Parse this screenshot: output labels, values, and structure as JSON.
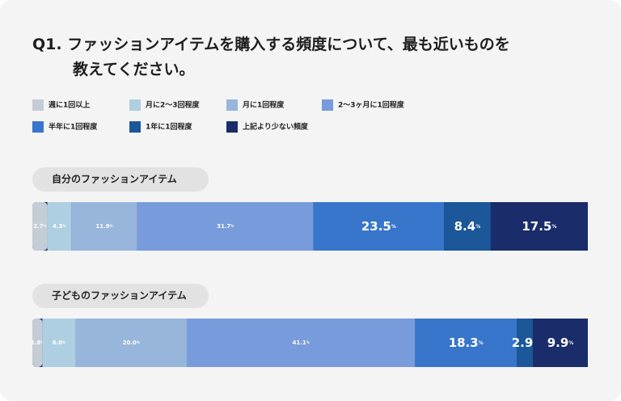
{
  "title": "Q1. ファッションアイテムを購入する頻度について、最も近いものを\n教えてください。",
  "legend": [
    {
      "name": "週に1回以上",
      "color": "#c4cdd5"
    },
    {
      "name": "月に2〜3回程度",
      "color": "#aecfe2"
    },
    {
      "name": "月に1回程度",
      "color": "#98b6dc"
    },
    {
      "name": "2〜3ヶ月に1回程度",
      "color": "#789cdb"
    },
    {
      "name": "半年に1回程度",
      "color": "#3876cb"
    },
    {
      "name": "1年に1回程度",
      "color": "#1b5799"
    },
    {
      "name": "上記より少ない頻度",
      "color": "#1a2d6a"
    }
  ],
  "chart_data": [
    {
      "type": "stacked-bar",
      "title": "自分のファッションアイテム",
      "xlim": [
        0,
        100
      ],
      "series": [
        {
          "values": [
            2.7
          ],
          "value_labels": [
            "2.7%"
          ]
        },
        {
          "values": [
            4.3
          ],
          "value_labels": [
            "4.3%"
          ]
        },
        {
          "values": [
            11.9
          ],
          "value_labels": [
            "11.9%"
          ]
        },
        {
          "values": [
            31.7
          ],
          "value_labels": [
            "31.7%"
          ]
        },
        {
          "values": [
            23.5
          ],
          "value_labels": [
            "23.5%"
          ]
        },
        {
          "values": [
            8.4
          ],
          "value_labels": [
            "8.4%"
          ]
        },
        {
          "values": [
            17.5
          ],
          "value_labels": [
            "17.5%"
          ]
        }
      ]
    },
    {
      "type": "stacked-bar",
      "title": "子どものファッションアイテム",
      "xlim": [
        0,
        100
      ],
      "series": [
        {
          "values": [
            1.8
          ],
          "value_labels": [
            "1.8%"
          ]
        },
        {
          "values": [
            6
          ],
          "value_labels": [
            "6.0%"
          ]
        },
        {
          "values": [
            20
          ],
          "value_labels": [
            "20.0%"
          ]
        },
        {
          "values": [
            41.1
          ],
          "value_labels": [
            "41.1%"
          ]
        },
        {
          "values": [
            18.3
          ],
          "value_labels": [
            "18.3%"
          ]
        },
        {
          "values": [
            2.9
          ],
          "value_labels": [
            "2.9%"
          ]
        },
        {
          "values": [
            9.9
          ],
          "value_labels": [
            "9.9%"
          ]
        }
      ]
    }
  ]
}
